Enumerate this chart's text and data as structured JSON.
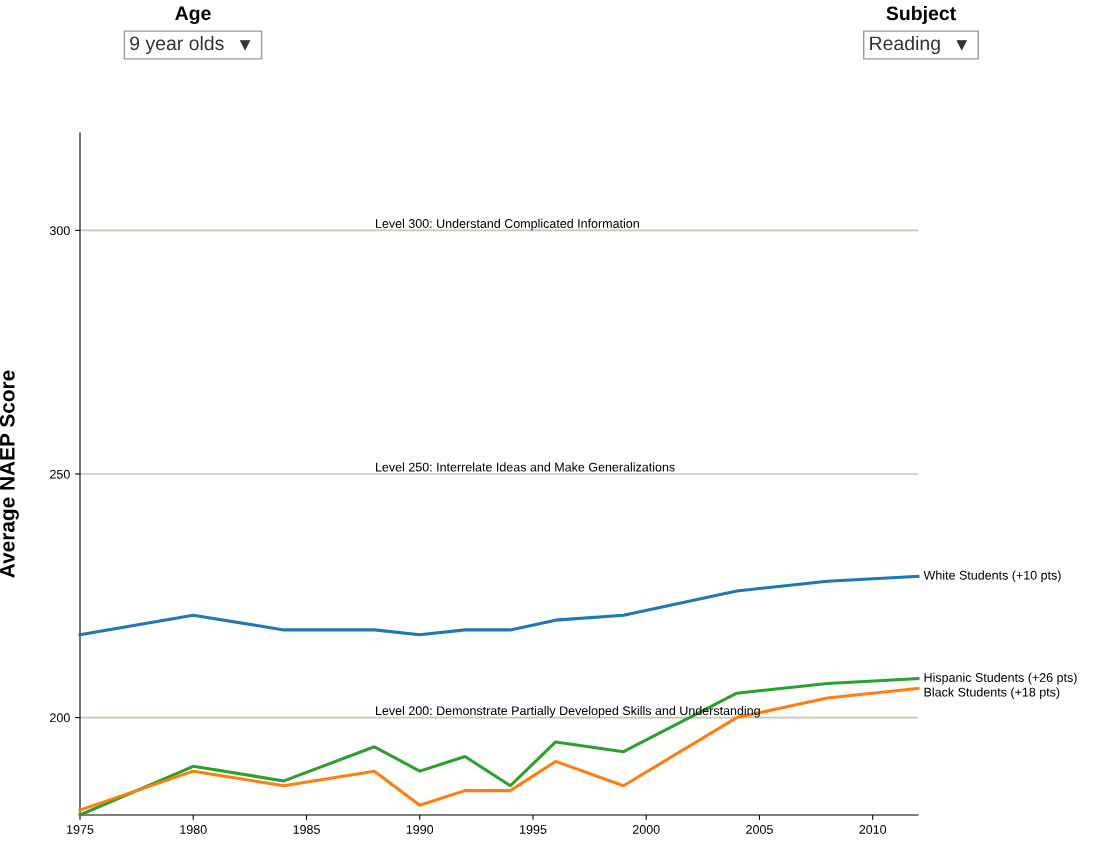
{
  "chart_data": {
    "type": "line",
    "ylabel": "Average NAEP Score",
    "annotations": [
      "Age",
      "9 year olds",
      "Subject",
      "Reading"
    ],
    "x": [
      1975,
      1980,
      1984,
      1988,
      1990,
      1992,
      1994,
      1996,
      1999,
      2004,
      2008,
      2012
    ],
    "series": [
      {
        "name": "White Students (+10 pts)",
        "color": "#1f77b4",
        "values": [
          217,
          221,
          218,
          218,
          217,
          218,
          218,
          220,
          221,
          226,
          228,
          229
        ]
      },
      {
        "name": "Hispanic Students (+26 pts)",
        "color": "#2ca02c",
        "values": [
          180,
          190,
          187,
          194,
          189,
          192,
          186,
          195,
          193,
          205,
          207,
          208
        ]
      },
      {
        "name": "Black Students (+18 pts)",
        "color": "#ff7f0e",
        "values": [
          181,
          189,
          186,
          189,
          182,
          185,
          185,
          191,
          186,
          200,
          204,
          206
        ]
      }
    ],
    "xlim": [
      1975,
      2012
    ],
    "ylim": [
      180,
      320
    ],
    "xticks": [
      1975,
      1980,
      1985,
      1990,
      1995,
      2000,
      2005,
      2010
    ],
    "yticks": [
      200,
      250,
      300
    ],
    "ref_lines": [
      {
        "axis": "y",
        "value": 300,
        "label": "Level 300: Understand Complicated Information",
        "color": "#c8c8b4"
      },
      {
        "axis": "y",
        "value": 250,
        "label": "Level 250: Interrelate Ideas and Make Generalizations",
        "color": "#c8c8b4"
      },
      {
        "axis": "y",
        "value": 200,
        "label": "Level 200: Demonstrate Partially Developed Skills and Understanding",
        "color": "#c8c8b4"
      }
    ],
    "grid": false,
    "legend": false,
    "marker": "none",
    "line_style": "solid"
  }
}
